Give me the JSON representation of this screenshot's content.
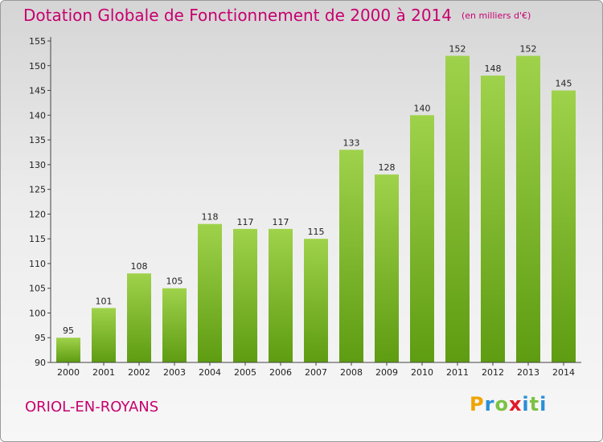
{
  "title": "Dotation Globale de Fonctionnement de 2000 à 2014",
  "subtitle": "(en milliers d'€)",
  "location": "ORIOL-EN-ROYANS",
  "logo": {
    "letters": [
      "P",
      "r",
      "o",
      "x",
      "i",
      "t",
      "i"
    ],
    "colors": [
      "#f0a400",
      "#2a8fd6",
      "#7cc242",
      "#e2182a",
      "#2a8fd6",
      "#7cc242",
      "#2a8fd6"
    ]
  },
  "colors": {
    "accent": "#c7006f",
    "bar_top": "#9fd24b",
    "bar_bottom": "#5e9c12"
  },
  "chart_data": {
    "type": "bar",
    "categories": [
      "2000",
      "2001",
      "2002",
      "2003",
      "2004",
      "2005",
      "2006",
      "2007",
      "2008",
      "2009",
      "2010",
      "2011",
      "2012",
      "2013",
      "2014"
    ],
    "values": [
      95,
      101,
      108,
      105,
      118,
      117,
      117,
      115,
      133,
      128,
      140,
      152,
      148,
      152,
      145
    ],
    "y_ticks": [
      90,
      95,
      100,
      105,
      110,
      115,
      120,
      125,
      130,
      135,
      140,
      145,
      150,
      155
    ],
    "ylim": [
      90,
      155
    ],
    "grid": false
  }
}
